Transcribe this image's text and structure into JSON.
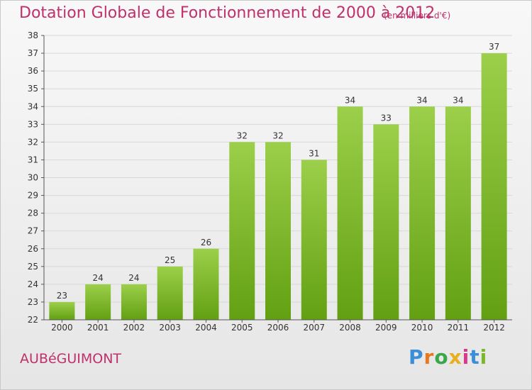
{
  "header": {
    "title": "Dotation Globale de Fonctionnement de 2000 à 2012",
    "unit": "(en milliers d'€)"
  },
  "commune": "AUBéGUIMONT",
  "logo": {
    "text": "Proxiti",
    "letter_colors": [
      "#3a8fd8",
      "#e87722",
      "#3aa84a",
      "#e8b020",
      "#d83a8a",
      "#3a8fd8",
      "#7ab828"
    ]
  },
  "colors": {
    "bar_top": "#9ccf4a",
    "bar_bottom": "#62a012",
    "grid": "#d8d8d8",
    "axis": "#555555",
    "title": "#c0306a"
  },
  "chart_data": {
    "type": "bar",
    "title": "Dotation Globale de Fonctionnement de 2000 à 2012",
    "subtitle": "(en milliers d'€)",
    "xlabel": "",
    "ylabel": "",
    "categories": [
      "2000",
      "2001",
      "2002",
      "2003",
      "2004",
      "2005",
      "2006",
      "2007",
      "2008",
      "2009",
      "2010",
      "2011",
      "2012"
    ],
    "values": [
      23,
      24,
      24,
      25,
      26,
      32,
      32,
      31,
      34,
      33,
      34,
      34,
      37
    ],
    "ylim": [
      22,
      38
    ],
    "yticks": [
      22,
      23,
      24,
      25,
      26,
      27,
      28,
      29,
      30,
      31,
      32,
      33,
      34,
      35,
      36,
      37,
      38
    ],
    "grid": true,
    "legend": "none",
    "data_labels": true
  }
}
